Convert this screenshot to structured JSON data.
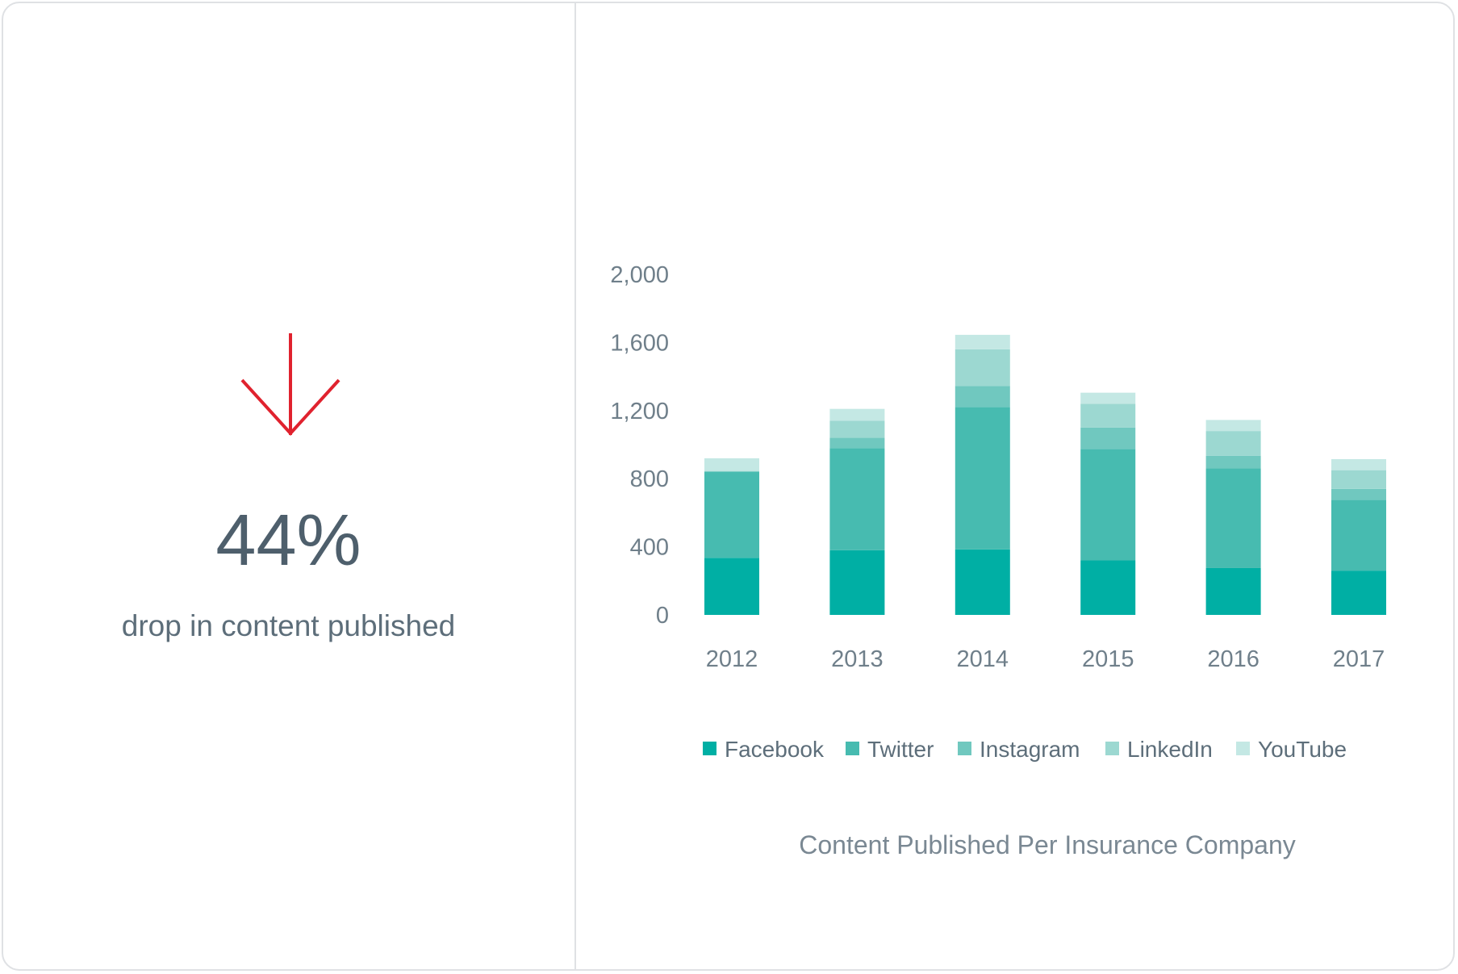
{
  "stat": {
    "value": "44%",
    "caption": "drop in content published",
    "arrow_color": "#e0222e",
    "arrow_icon": "arrow-down-icon"
  },
  "chart_data": {
    "type": "bar",
    "stacked": true,
    "title": "Content Published Per Insurance Company",
    "xlabel": "",
    "ylabel": "",
    "ylim": [
      0,
      2000
    ],
    "yticks": [
      "0",
      "400",
      "800",
      "1,200",
      "1,600",
      "2,000"
    ],
    "ytick_values": [
      0,
      400,
      800,
      1200,
      1600,
      2000
    ],
    "grid": false,
    "legend_position": "bottom",
    "categories": [
      "2012",
      "2013",
      "2014",
      "2015",
      "2016",
      "2017"
    ],
    "series": [
      {
        "name": "Facebook",
        "color": "#00afa4",
        "values": [
          335,
          380,
          385,
          320,
          275,
          260
        ]
      },
      {
        "name": "Twitter",
        "color": "#47bbb0",
        "values": [
          505,
          600,
          835,
          655,
          585,
          415
        ]
      },
      {
        "name": "Instagram",
        "color": "#70c8bf",
        "values": [
          5,
          60,
          125,
          125,
          75,
          65
        ]
      },
      {
        "name": "LinkedIn",
        "color": "#9cd8d1",
        "values": [
          0,
          100,
          215,
          140,
          145,
          110
        ]
      },
      {
        "name": "YouTube",
        "color": "#c4e8e4",
        "values": [
          75,
          70,
          85,
          65,
          65,
          65
        ]
      }
    ]
  }
}
